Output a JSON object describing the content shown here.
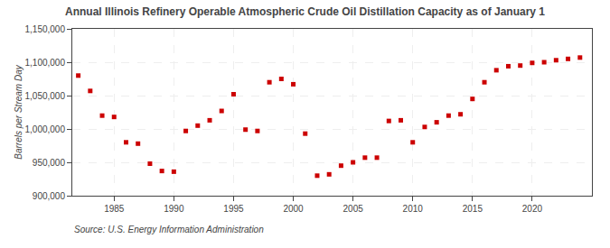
{
  "chart_data": {
    "type": "scatter",
    "title": "Annual Illinois Refinery Operable Atmospheric Crude Oil Distillation Capacity as of January 1",
    "ylabel": "Barrels per Stream Day",
    "annotations": [
      "Source: U.S. Energy Information Administration"
    ],
    "x": [
      1982,
      1983,
      1984,
      1985,
      1986,
      1987,
      1988,
      1989,
      1990,
      1991,
      1992,
      1993,
      1994,
      1995,
      1996,
      1997,
      1998,
      1999,
      2000,
      2001,
      2002,
      2003,
      2004,
      2005,
      2006,
      2007,
      2008,
      2009,
      2010,
      2011,
      2012,
      2013,
      2014,
      2015,
      2016,
      2017,
      2018,
      2019,
      2020,
      2021,
      2022,
      2023,
      2024
    ],
    "values": [
      1080000,
      1057000,
      1020000,
      1018000,
      980000,
      978000,
      948000,
      937000,
      936000,
      997000,
      1005000,
      1013000,
      1027000,
      1052000,
      999000,
      997000,
      1070000,
      1075000,
      1067000,
      993000,
      930000,
      932000,
      945000,
      950000,
      957000,
      957000,
      1012000,
      1013000,
      980000,
      1003000,
      1010000,
      1020000,
      1022000,
      1045000,
      1070000,
      1088000,
      1094000,
      1095000,
      1099000,
      1100000,
      1103000,
      1105000,
      1107000
    ],
    "color": "#cc0000",
    "marker": "square",
    "xlim": [
      1981.5,
      2025.0
    ],
    "xticks": [
      1985,
      1990,
      1995,
      2000,
      2005,
      2010,
      2015,
      2020
    ],
    "ylim": [
      900000,
      1150000
    ],
    "yticks": [
      {
        "value": 900000,
        "label": "900,000"
      },
      {
        "value": 950000,
        "label": "950,000"
      },
      {
        "value": 1000000,
        "label": "1,000,000"
      },
      {
        "value": 1050000,
        "label": "1,050,000"
      },
      {
        "value": 1100000,
        "label": "1,100,000"
      },
      {
        "value": 1150000,
        "label": "1,150,000"
      }
    ],
    "grid": true
  }
}
